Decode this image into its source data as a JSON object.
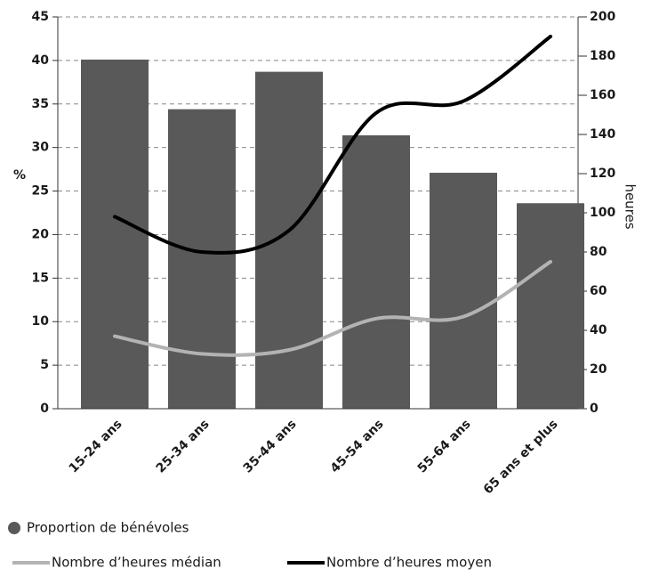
{
  "chart_data": {
    "type": "bar",
    "categories": [
      "15-24 ans",
      "25-34 ans",
      "35-44 ans",
      "45-54 ans",
      "55-64 ans",
      "65 ans et plus"
    ],
    "series": [
      {
        "name": "Proportion de bénévoles",
        "type": "bar",
        "color": "#595959",
        "values": [
          40.1,
          34.4,
          38.7,
          31.4,
          27.1,
          23.6
        ]
      },
      {
        "name": "Nombre d’heures médian",
        "type": "line",
        "axis": "y2",
        "color": "#b3b3b3",
        "values": [
          37,
          28,
          30,
          46,
          47,
          75
        ]
      },
      {
        "name": "Nombre d’heures moyen",
        "type": "line",
        "axis": "y2",
        "color": "#000000",
        "values": [
          98,
          80,
          91,
          151,
          157,
          190
        ]
      }
    ],
    "ylabel": "%",
    "y2label": "heures",
    "ylim": [
      0,
      45
    ],
    "yticks": [
      0,
      5,
      10,
      15,
      20,
      25,
      30,
      35,
      40,
      45
    ],
    "y2lim": [
      0,
      200
    ],
    "y2ticks": [
      0,
      20,
      40,
      60,
      80,
      100,
      120,
      140,
      160,
      180,
      200
    ],
    "grid": true
  }
}
